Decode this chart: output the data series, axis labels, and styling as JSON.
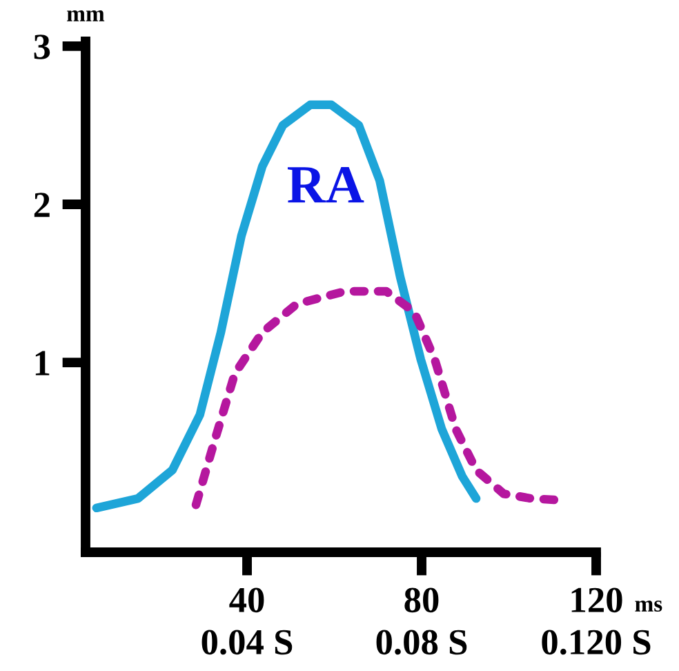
{
  "chart_data": {
    "type": "line",
    "xlabel": "ms",
    "ylabel": "mm",
    "xlim": [
      3,
      120
    ],
    "ylim": [
      -0.2,
      3.03
    ],
    "xticks": [
      40,
      80,
      120
    ],
    "x2lim": [
      0.003,
      0.12
    ],
    "x2ticks": [
      {
        "value": 0.04,
        "label": "0.04 S"
      },
      {
        "value": 0.08,
        "label": "0.08 S"
      },
      {
        "value": 0.12,
        "label": "0.120 S"
      }
    ],
    "yticks": [
      1,
      2,
      3
    ],
    "grid": false,
    "legend": false,
    "annotations": [
      "RA"
    ],
    "series": [
      {
        "color": "#1ea5d8",
        "line_style": "solid",
        "x": [
          5.5,
          15,
          22.9,
          29.2,
          34,
          38.7,
          43.5,
          48.2,
          54.5,
          59.3,
          65.6,
          70.4,
          75.1,
          79.8,
          84.6,
          89.3,
          92.5
        ],
        "values": [
          0.08,
          0.14,
          0.32,
          0.67,
          1.19,
          1.8,
          2.24,
          2.5,
          2.63,
          2.63,
          2.5,
          2.15,
          1.54,
          1.02,
          0.58,
          0.28,
          0.14
        ]
      },
      {
        "color": "#b5179e",
        "line_style": "dotted",
        "x": [
          28.3,
          32.4,
          37.2,
          43.5,
          51.4,
          62.4,
          71.9,
          78.3,
          83,
          87.8,
          92.5,
          98.8,
          105.1,
          111.5
        ],
        "values": [
          0.1,
          0.49,
          0.93,
          1.19,
          1.37,
          1.45,
          1.45,
          1.32,
          1.02,
          0.58,
          0.32,
          0.17,
          0.14,
          0.13
        ]
      }
    ]
  }
}
